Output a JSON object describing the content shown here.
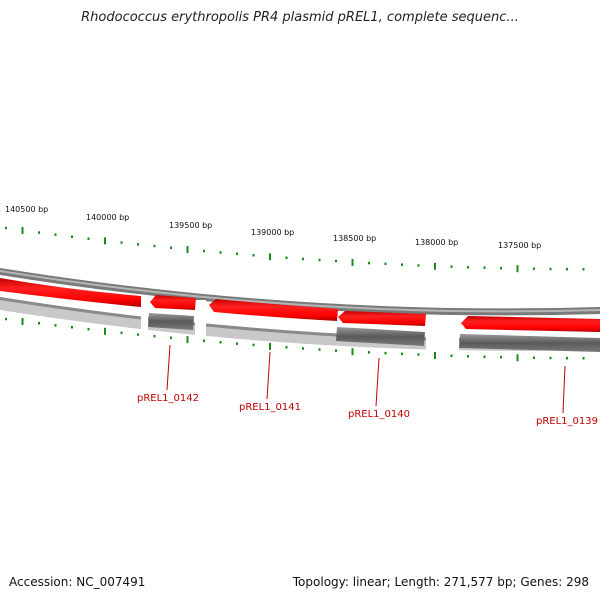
{
  "title": "Rhodococcus erythropolis PR4 plasmid pREL1, complete sequenc...",
  "footer": {
    "accession": "Accession: NC_007491",
    "summary": "Topology: linear; Length: 271,577 bp; Genes: 298"
  },
  "colors": {
    "tick": "#1a8a1a",
    "gene": "#ff0000",
    "gene_label": "#c00000",
    "track_dark": "#707070",
    "track_light": "#c8c8c8"
  },
  "scale_labels": [
    {
      "text": "140500 bp"
    },
    {
      "text": "140000 bp"
    },
    {
      "text": "139500 bp"
    },
    {
      "text": "139000 bp"
    },
    {
      "text": "138500 bp"
    },
    {
      "text": "138000 bp"
    },
    {
      "text": "137500 bp"
    }
  ],
  "genes": [
    {
      "label": ""
    },
    {
      "label": "pREL1_0142"
    },
    {
      "label": "pREL1_0141"
    },
    {
      "label": "pREL1_0140"
    },
    {
      "label": "pREL1_0139"
    }
  ]
}
